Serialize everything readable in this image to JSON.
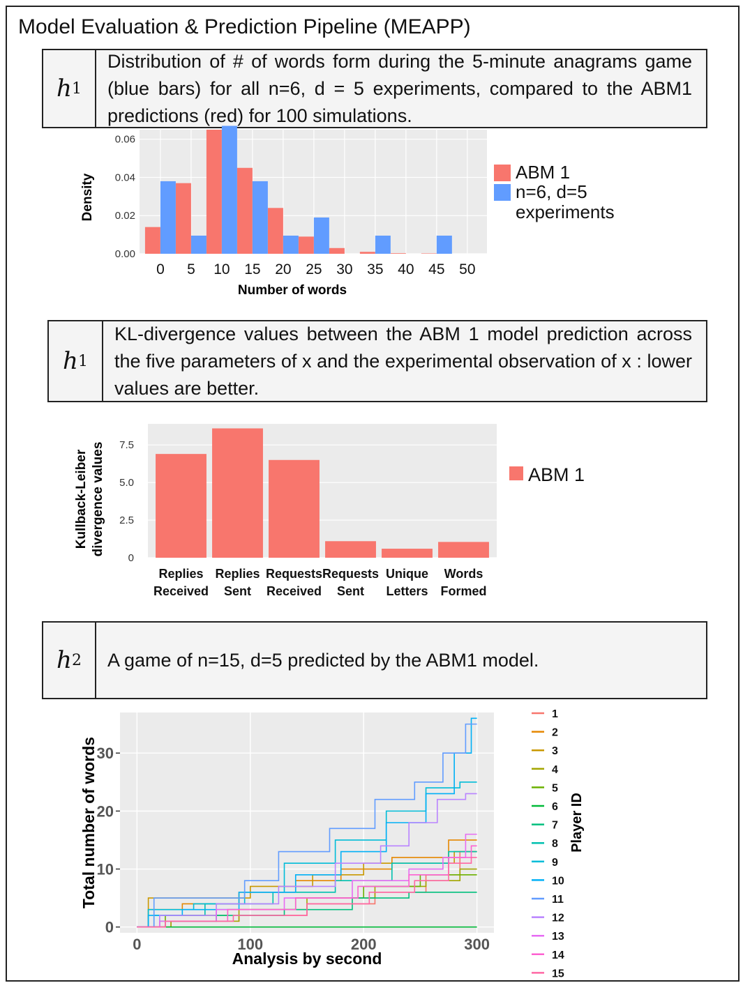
{
  "page": {
    "title": "Model Evaluation & Prediction Pipeline (MEAPP)"
  },
  "sections": [
    {
      "hyp_letter": "h",
      "hyp_index": "1",
      "caption": "Distribution of # of words form during the 5-minute anagrams game (blue bars) for all n=6, d = 5 experiments, compared to the ABM1 predictions (red) for 100 simulations."
    },
    {
      "hyp_letter": "h",
      "hyp_index": "1",
      "caption": "KL-divergence values between the ABM 1 model prediction across the five parameters of x and the experimental observation of x : lower values are better."
    },
    {
      "hyp_letter": "h",
      "hyp_index": "2",
      "caption": "A game of n=15, d=5 predicted by the ABM1 model."
    }
  ],
  "chart_data": [
    {
      "type": "bar",
      "xlabel": "Number of words",
      "ylabel": "Density",
      "x_ticks": [
        0,
        5,
        10,
        15,
        20,
        25,
        30,
        35,
        40,
        45,
        50
      ],
      "y_ticks": [
        "0.00",
        "0.02",
        "0.04",
        "0.06"
      ],
      "ylim": [
        0,
        0.065
      ],
      "bin_centers": [
        0,
        5,
        10,
        15,
        20,
        25,
        30,
        35,
        40,
        45,
        50
      ],
      "series": [
        {
          "name": "ABM 1",
          "color": "#F8766D",
          "values": [
            0.014,
            0.037,
            0.065,
            0.045,
            0.024,
            0.009,
            0.003,
            0.001,
            0.0003,
            0.0002,
            0.0
          ]
        },
        {
          "name": "n=6, d=5\nexperiments",
          "color": "#619CFF",
          "values": [
            0.038,
            0.0095,
            0.067,
            0.038,
            0.0095,
            0.019,
            0.0,
            0.0095,
            0.0,
            0.0095,
            0.0
          ]
        }
      ],
      "legend": "right",
      "grid": true
    },
    {
      "type": "bar",
      "xlabel": "",
      "ylabel": "Kullback-Leiber\ndivergence values",
      "categories": [
        "Replies\nReceived",
        "Replies\nSent",
        "Requests\nReceived",
        "Requests\nSent",
        "Unique\nLetters",
        "Words\nFormed"
      ],
      "y_ticks": [
        "0",
        "2.5",
        "5.0",
        "7.5"
      ],
      "y_tick_values": [
        0,
        2.5,
        5.0,
        7.5
      ],
      "ylim": [
        0,
        8.9
      ],
      "series": [
        {
          "name": "ABM 1",
          "color": "#F8766D",
          "values": [
            6.9,
            8.6,
            6.5,
            1.1,
            0.6,
            1.05
          ]
        }
      ],
      "legend": "right",
      "grid": true
    },
    {
      "type": "line",
      "xlabel": "Analysis by second",
      "ylabel": "Total number of words",
      "x_ticks": [
        0,
        100,
        200,
        300
      ],
      "y_ticks": [
        0,
        10,
        20,
        30
      ],
      "xlim": [
        -15,
        315
      ],
      "ylim": [
        -1,
        37
      ],
      "legend_title": "Player ID",
      "legend": "right",
      "grid": true,
      "series": [
        {
          "name": "1",
          "color": "#F8766D",
          "points": [
            [
              0,
              0
            ],
            [
              60,
              1
            ],
            [
              120,
              2
            ],
            [
              180,
              4
            ],
            [
              240,
              6
            ],
            [
              270,
              9
            ],
            [
              300,
              13
            ]
          ]
        },
        {
          "name": "2",
          "color": "#E58700",
          "points": [
            [
              0,
              0
            ],
            [
              20,
              3
            ],
            [
              60,
              4
            ],
            [
              120,
              6
            ],
            [
              160,
              8
            ],
            [
              200,
              10
            ],
            [
              250,
              12
            ],
            [
              300,
              15
            ]
          ]
        },
        {
          "name": "3",
          "color": "#C99800",
          "points": [
            [
              0,
              0
            ],
            [
              20,
              5
            ],
            [
              70,
              5
            ],
            [
              130,
              7
            ],
            [
              180,
              9
            ],
            [
              220,
              11
            ],
            [
              260,
              11
            ],
            [
              300,
              13
            ]
          ]
        },
        {
          "name": "4",
          "color": "#A3A500",
          "points": [
            [
              0,
              0
            ],
            [
              60,
              1
            ],
            [
              120,
              3
            ],
            [
              180,
              5
            ],
            [
              240,
              7
            ],
            [
              270,
              8
            ],
            [
              300,
              10
            ]
          ]
        },
        {
          "name": "5",
          "color": "#6BB100",
          "points": [
            [
              0,
              0
            ],
            [
              50,
              2
            ],
            [
              110,
              3
            ],
            [
              170,
              5
            ],
            [
              230,
              7
            ],
            [
              270,
              9
            ],
            [
              300,
              9
            ]
          ]
        },
        {
          "name": "6",
          "color": "#00BA38",
          "points": [
            [
              0,
              0
            ],
            [
              300,
              0
            ]
          ]
        },
        {
          "name": "7",
          "color": "#00BF7D",
          "points": [
            [
              0,
              0
            ],
            [
              40,
              1
            ],
            [
              100,
              2
            ],
            [
              160,
              3
            ],
            [
              220,
              5
            ],
            [
              260,
              6
            ],
            [
              300,
              6
            ]
          ]
        },
        {
          "name": "8",
          "color": "#00C0AF",
          "points": [
            [
              0,
              0
            ],
            [
              30,
              2
            ],
            [
              90,
              4
            ],
            [
              150,
              6
            ],
            [
              200,
              8
            ],
            [
              250,
              11
            ],
            [
              300,
              13
            ]
          ]
        },
        {
          "name": "9",
          "color": "#00BCD8",
          "points": [
            [
              0,
              0
            ],
            [
              20,
              3
            ],
            [
              80,
              4
            ],
            [
              110,
              6
            ],
            [
              150,
              11
            ],
            [
              200,
              15
            ],
            [
              240,
              20
            ],
            [
              270,
              24
            ],
            [
              300,
              25
            ]
          ]
        },
        {
          "name": "10",
          "color": "#00B0F6",
          "points": [
            [
              0,
              0
            ],
            [
              20,
              2
            ],
            [
              60,
              3
            ],
            [
              120,
              6
            ],
            [
              160,
              9
            ],
            [
              200,
              13
            ],
            [
              240,
              18
            ],
            [
              270,
              23
            ],
            [
              290,
              30
            ],
            [
              300,
              36
            ]
          ]
        },
        {
          "name": "11",
          "color": "#619CFF",
          "points": [
            [
              0,
              0
            ],
            [
              30,
              5
            ],
            [
              90,
              5
            ],
            [
              100,
              8
            ],
            [
              150,
              13
            ],
            [
              190,
              17
            ],
            [
              230,
              22
            ],
            [
              260,
              25
            ],
            [
              280,
              30
            ],
            [
              300,
              35
            ]
          ]
        },
        {
          "name": "12",
          "color": "#B983FF",
          "points": [
            [
              0,
              0
            ],
            [
              40,
              2
            ],
            [
              100,
              4
            ],
            [
              150,
              7
            ],
            [
              200,
              11
            ],
            [
              230,
              14
            ],
            [
              250,
              18
            ],
            [
              280,
              22
            ],
            [
              300,
              23
            ]
          ]
        },
        {
          "name": "13",
          "color": "#E76BF3",
          "points": [
            [
              0,
              0
            ],
            [
              40,
              1
            ],
            [
              100,
              3
            ],
            [
              160,
              5
            ],
            [
              220,
              8
            ],
            [
              260,
              10
            ],
            [
              280,
              12
            ],
            [
              300,
              16
            ]
          ]
        },
        {
          "name": "14",
          "color": "#FD61D1",
          "points": [
            [
              0,
              0
            ],
            [
              50,
              1
            ],
            [
              110,
              3
            ],
            [
              170,
              5
            ],
            [
              220,
              7
            ],
            [
              260,
              9
            ],
            [
              290,
              12
            ],
            [
              300,
              14
            ]
          ]
        },
        {
          "name": "15",
          "color": "#FF67A4",
          "points": [
            [
              0,
              0
            ],
            [
              50,
              1
            ],
            [
              120,
              2
            ],
            [
              180,
              4
            ],
            [
              230,
              6
            ],
            [
              260,
              8
            ],
            [
              290,
              11
            ],
            [
              300,
              12
            ]
          ]
        }
      ]
    }
  ]
}
